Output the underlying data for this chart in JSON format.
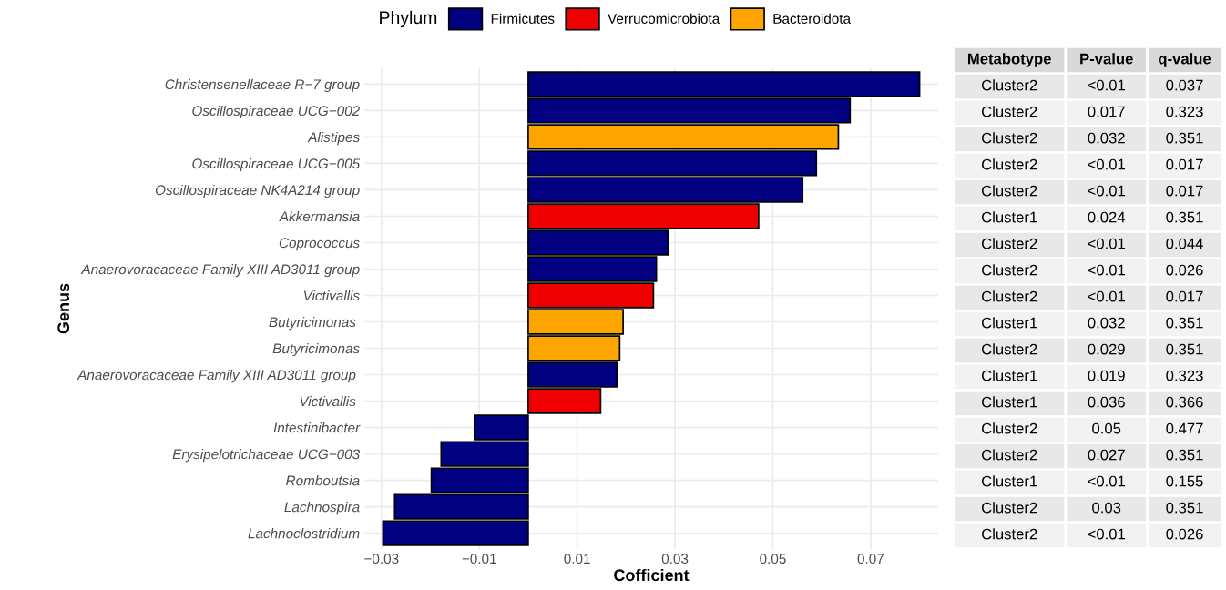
{
  "chart_data": [
    {
      "type": "bar",
      "orientation": "horizontal",
      "xlabel": "Cofficient",
      "ylabel": "Genus",
      "legend_title": "Phylum",
      "legend": "top",
      "categories": [
        "Christensenellaceae R−7 group",
        "Oscillospiraceae UCG−002",
        "Alistipes",
        "Oscillospiraceae UCG−005",
        "Oscillospiraceae NK4A214 group",
        "Akkermansia",
        "Coprococcus",
        "Anaerovoracaceae Family XIII AD3011 group",
        "Victivallis",
        "Butyricimonas ",
        "Butyricimonas",
        "Anaerovoracaceae Family XIII AD3011 group ",
        "Victivallis ",
        "Intestinibacter",
        "Erysipelotrichaceae UCG−003",
        "Romboutsia",
        "Lachnospira",
        "Lachnoclostridium"
      ],
      "series": [
        {
          "name": "Firmicutes",
          "color": "#000080",
          "values": [
            0.08,
            0.0658,
            null,
            0.0589,
            0.0561,
            null,
            0.0286,
            0.0262,
            null,
            null,
            null,
            0.0181,
            null,
            -0.011,
            -0.0178,
            -0.0198,
            -0.0273,
            -0.0297
          ]
        },
        {
          "name": "Verrucomicrobiota",
          "color": "#ee0000",
          "values": [
            null,
            null,
            null,
            null,
            null,
            0.0471,
            null,
            null,
            0.0256,
            null,
            null,
            null,
            0.0148,
            null,
            null,
            null,
            null,
            null
          ]
        },
        {
          "name": "Bacteroidota",
          "color": "#ffa500",
          "values": [
            null,
            null,
            0.0634,
            null,
            null,
            null,
            null,
            null,
            null,
            0.0194,
            0.0187,
            null,
            null,
            null,
            null,
            null,
            null,
            null
          ]
        }
      ],
      "xlim": [
        -0.0335,
        0.0838
      ],
      "xticks": [
        {
          "value": -0.03,
          "label": "−0.03"
        },
        {
          "value": -0.01,
          "label": "−0.01"
        },
        0.01,
        0.03,
        0.05,
        0.07
      ],
      "grid": true
    },
    {
      "type": "other",
      "categories": [
        "Metabotype",
        "P-value",
        "q-value"
      ],
      "cell_labels": [
        [
          "Cluster2",
          "<0.01",
          "0.037"
        ],
        [
          "Cluster2",
          "0.017",
          "0.323"
        ],
        [
          "Cluster2",
          "0.032",
          "0.351"
        ],
        [
          "Cluster2",
          "<0.01",
          "0.017"
        ],
        [
          "Cluster2",
          "<0.01",
          "0.017"
        ],
        [
          "Cluster1",
          "0.024",
          "0.351"
        ],
        [
          "Cluster2",
          "<0.01",
          "0.044"
        ],
        [
          "Cluster2",
          "<0.01",
          "0.026"
        ],
        [
          "Cluster2",
          "<0.01",
          "0.017"
        ],
        [
          "Cluster1",
          "0.032",
          "0.351"
        ],
        [
          "Cluster2",
          "0.029",
          "0.351"
        ],
        [
          "Cluster1",
          "0.019",
          "0.323"
        ],
        [
          "Cluster1",
          "0.036",
          "0.366"
        ],
        [
          "Cluster2",
          "0.05",
          "0.477"
        ],
        [
          "Cluster2",
          "0.027",
          "0.351"
        ],
        [
          "Cluster1",
          "<0.01",
          "0.155"
        ],
        [
          "Cluster2",
          "0.03",
          "0.351"
        ],
        [
          "Cluster2",
          "<0.01",
          "0.026"
        ]
      ]
    }
  ]
}
